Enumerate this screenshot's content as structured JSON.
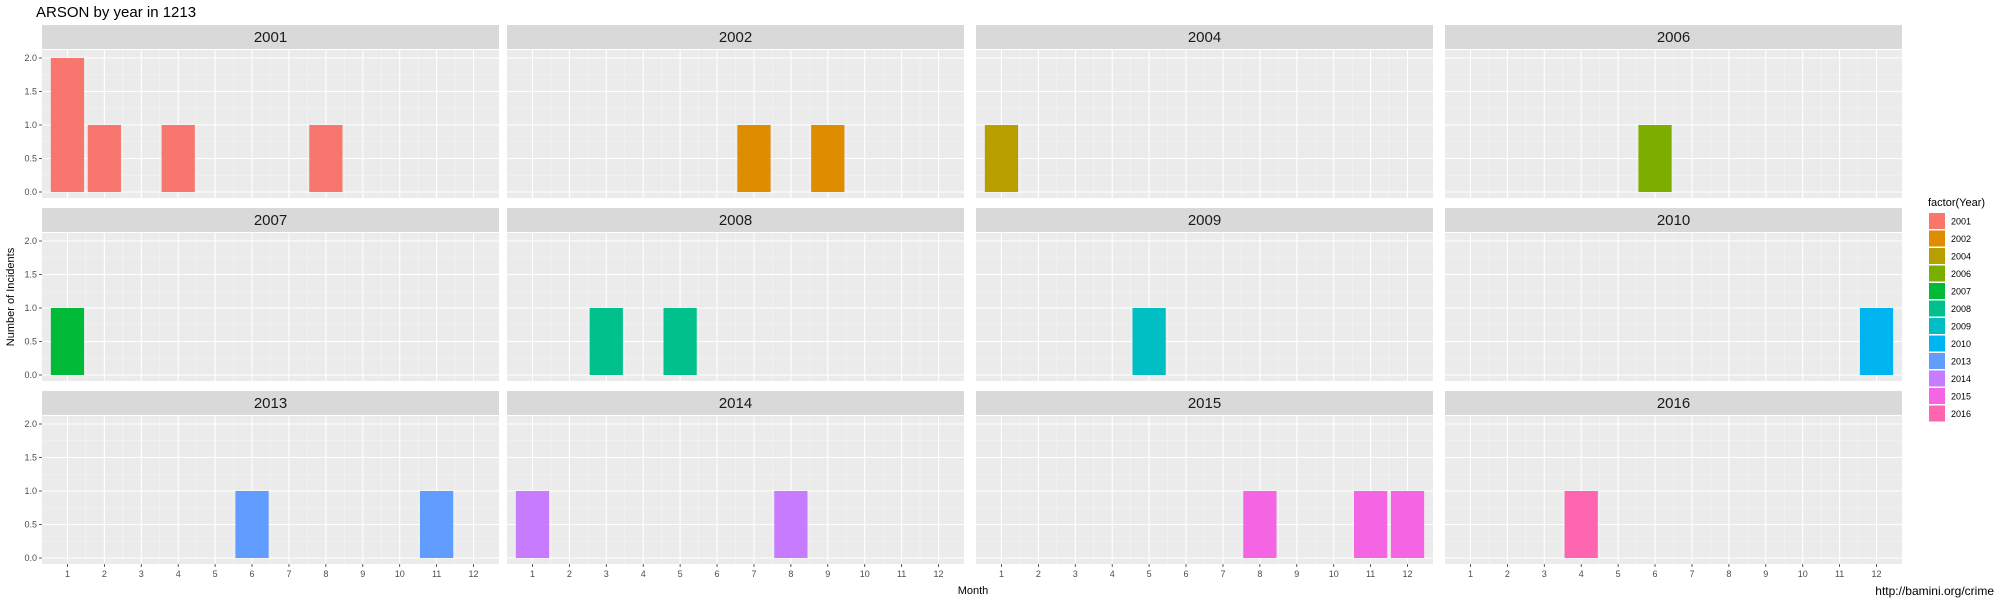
{
  "chart_data": {
    "type": "bar",
    "title": "ARSON by year in 1213",
    "xlabel": "Month",
    "ylabel": "Number of Incidents",
    "x_ticks": [
      1,
      2,
      3,
      4,
      5,
      6,
      7,
      8,
      9,
      10,
      11,
      12
    ],
    "ylim": [
      0,
      2
    ],
    "y_ticks": [
      "0.0",
      "0.5",
      "1.0",
      "1.5",
      "2.0"
    ],
    "grid": true,
    "legend_title": "factor(Year)",
    "legend_placement": "right",
    "facets": [
      {
        "year": "2001",
        "color": "#F8766D",
        "bars": [
          {
            "month": 1,
            "value": 2
          },
          {
            "month": 2,
            "value": 1
          },
          {
            "month": 4,
            "value": 1
          },
          {
            "month": 8,
            "value": 1
          }
        ]
      },
      {
        "year": "2002",
        "color": "#DE8C00",
        "bars": [
          {
            "month": 7,
            "value": 1
          },
          {
            "month": 9,
            "value": 1
          }
        ]
      },
      {
        "year": "2004",
        "color": "#B79F00",
        "bars": [
          {
            "month": 1,
            "value": 1
          }
        ]
      },
      {
        "year": "2006",
        "color": "#7CAE00",
        "bars": [
          {
            "month": 6,
            "value": 1
          }
        ]
      },
      {
        "year": "2007",
        "color": "#00BA38",
        "bars": [
          {
            "month": 1,
            "value": 1
          }
        ]
      },
      {
        "year": "2008",
        "color": "#00C08B",
        "bars": [
          {
            "month": 3,
            "value": 1
          },
          {
            "month": 5,
            "value": 1
          }
        ]
      },
      {
        "year": "2009",
        "color": "#00BFC4",
        "bars": [
          {
            "month": 5,
            "value": 1
          }
        ]
      },
      {
        "year": "2010",
        "color": "#00B4F0",
        "bars": [
          {
            "month": 12,
            "value": 1
          }
        ]
      },
      {
        "year": "2013",
        "color": "#619CFF",
        "bars": [
          {
            "month": 6,
            "value": 1
          },
          {
            "month": 11,
            "value": 1
          }
        ]
      },
      {
        "year": "2014",
        "color": "#C77CFF",
        "bars": [
          {
            "month": 1,
            "value": 1
          },
          {
            "month": 8,
            "value": 1
          }
        ]
      },
      {
        "year": "2015",
        "color": "#F564E3",
        "bars": [
          {
            "month": 8,
            "value": 1
          },
          {
            "month": 11,
            "value": 1
          },
          {
            "month": 12,
            "value": 1
          }
        ]
      },
      {
        "year": "2016",
        "color": "#FF64B0",
        "bars": [
          {
            "month": 4,
            "value": 1
          }
        ]
      }
    ]
  },
  "caption": "http://bamini.org/crime"
}
